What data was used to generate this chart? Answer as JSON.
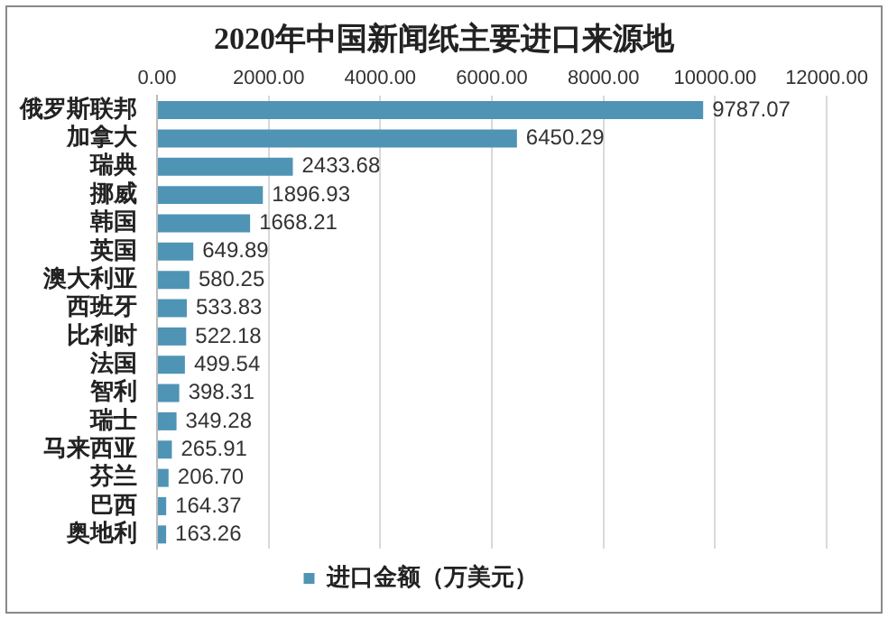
{
  "chart_data": {
    "type": "bar",
    "orientation": "horizontal",
    "title": "2020年中国新闻纸主要进口来源地",
    "categories": [
      "俄罗斯联邦",
      "加拿大",
      "瑞典",
      "挪威",
      "韩国",
      "英国",
      "澳大利亚",
      "西班牙",
      "比利时",
      "法国",
      "智利",
      "瑞士",
      "马来西亚",
      "芬兰",
      "巴西",
      "奥地利"
    ],
    "series": [
      {
        "name": "进口金额（万美元）",
        "color": "#4f94b5",
        "values": [
          9787.07,
          6450.29,
          2433.68,
          1896.93,
          1668.21,
          649.89,
          580.25,
          533.83,
          522.18,
          499.54,
          398.31,
          349.28,
          265.91,
          206.7,
          164.37,
          163.26
        ],
        "value_labels": [
          "9787.07",
          "6450.29",
          "2433.68",
          "1896.93",
          "1668.21",
          "649.89",
          "580.25",
          "533.83",
          "522.18",
          "499.54",
          "398.31",
          "349.28",
          "265.91",
          "206.70",
          "164.37",
          "163.26"
        ]
      }
    ],
    "xlim": [
      0,
      12000
    ],
    "xticks": [
      {
        "value": 0,
        "label": "0.00"
      },
      {
        "value": 2000,
        "label": "2000.00"
      },
      {
        "value": 4000,
        "label": "4000.00"
      },
      {
        "value": 6000,
        "label": "6000.00"
      },
      {
        "value": 8000,
        "label": "8000.00"
      },
      {
        "value": 10000,
        "label": "10000.00"
      },
      {
        "value": 12000,
        "label": "12000.00"
      }
    ],
    "grid": "x",
    "legend": "bottom"
  }
}
